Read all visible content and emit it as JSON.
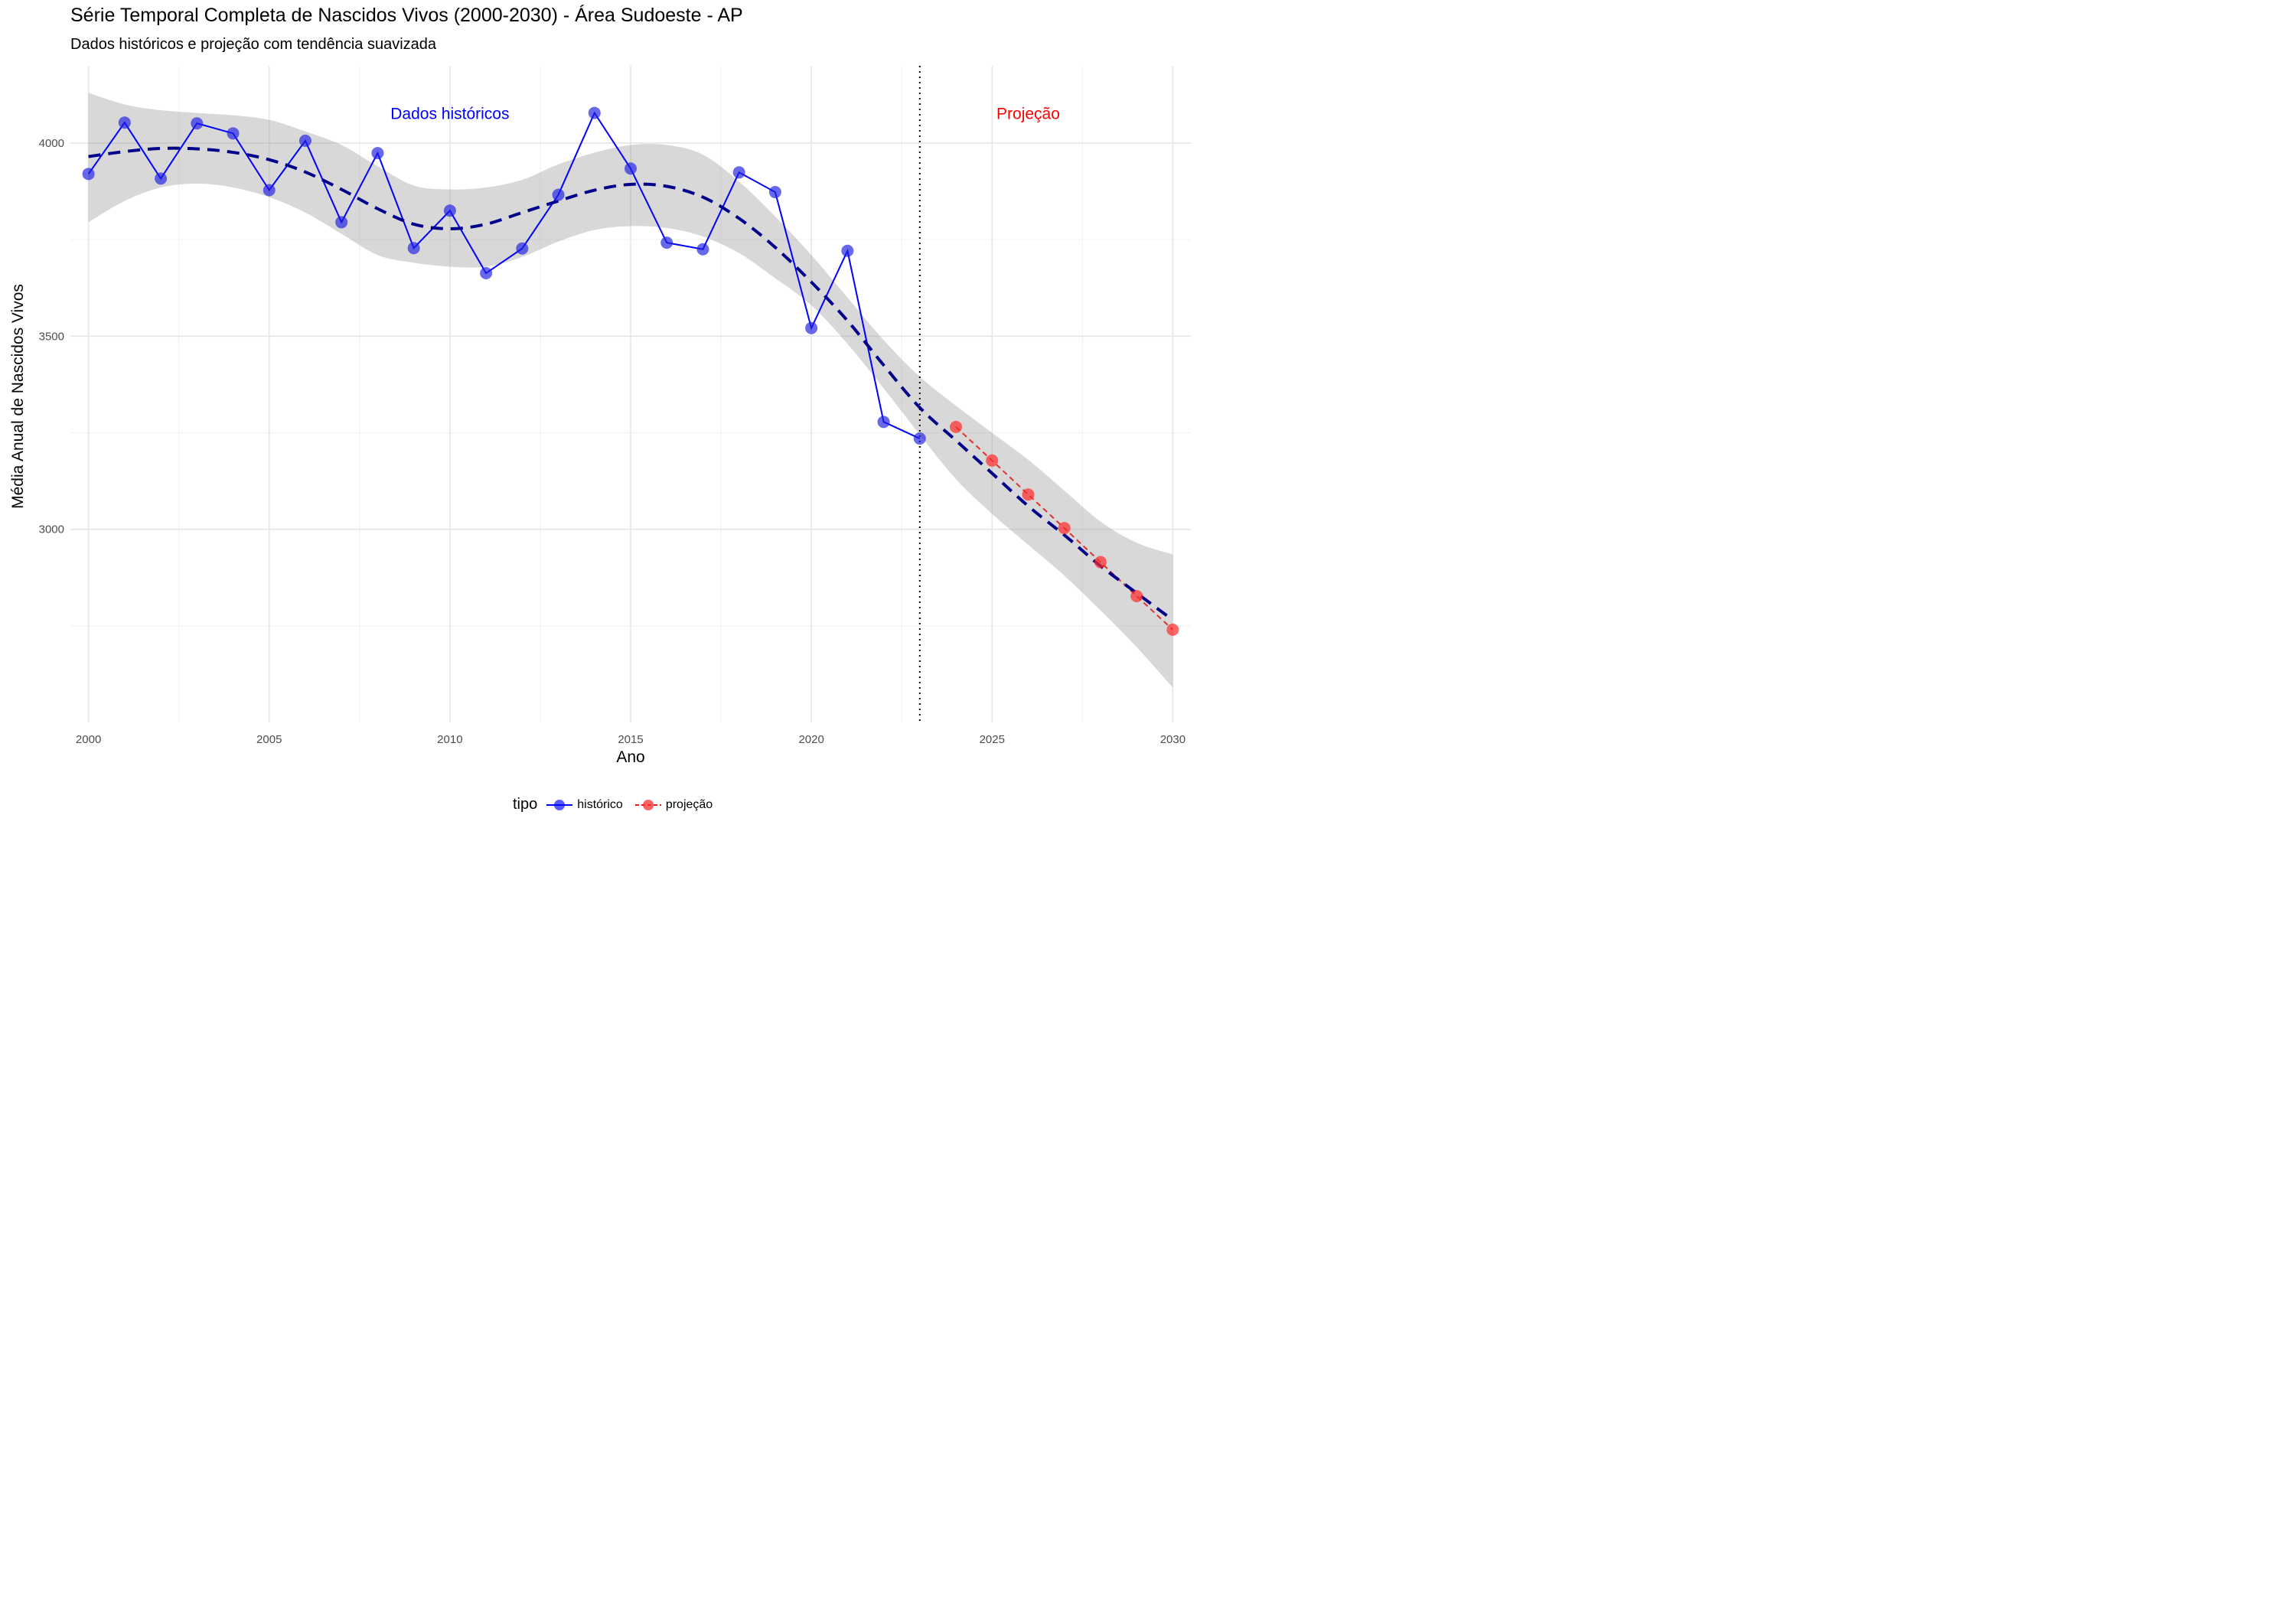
{
  "chart_data": {
    "type": "line",
    "title": "Série Temporal Completa de Nascidos Vivos (2000-2030) -  Área Sudoeste - AP",
    "subtitle": "Dados históricos e projeção com tendência suavizada",
    "xlabel": "Ano",
    "ylabel": "Média Anual de Nascidos Vivos",
    "xlim": [
      1999.5,
      2030.5
    ],
    "ylim": [
      2500,
      4200
    ],
    "x_ticks": [
      2000,
      2005,
      2010,
      2015,
      2020,
      2025,
      2030
    ],
    "y_ticks": [
      3000,
      3500,
      4000
    ],
    "grid": true,
    "legend": {
      "title": "tipo",
      "position": "bottom",
      "entries": [
        "histórico",
        "projeção"
      ]
    },
    "series": [
      {
        "name": "histórico",
        "color": "#0000ff",
        "x": [
          2000,
          2001,
          2002,
          2003,
          2004,
          2005,
          2006,
          2007,
          2008,
          2009,
          2010,
          2011,
          2012,
          2013,
          2014,
          2015,
          2016,
          2017,
          2018,
          2019,
          2020,
          2021,
          2022,
          2023
        ],
        "values": [
          3920,
          4053,
          3908,
          4051,
          4025,
          3878,
          4006,
          3795,
          3974,
          3728,
          3825,
          3663,
          3727,
          3866,
          4078,
          3934,
          3742,
          3725,
          3924,
          3873,
          3521,
          3721,
          3278,
          3235
        ]
      },
      {
        "name": "projeção",
        "color": "#ff0000",
        "x": [
          2024,
          2025,
          2026,
          2027,
          2028,
          2029,
          2030
        ],
        "values": [
          3265,
          3178,
          3090,
          3003,
          2915,
          2827,
          2740
        ]
      }
    ],
    "trend": {
      "color": "#00008b",
      "style": "dashed",
      "x": [
        2000,
        2001,
        2002,
        2003,
        2004,
        2005,
        2006,
        2007,
        2008,
        2009,
        2010,
        2011,
        2012,
        2013,
        2014,
        2015,
        2016,
        2017,
        2018,
        2019,
        2020,
        2021,
        2022,
        2023,
        2024,
        2025,
        2026,
        2027,
        2028,
        2029,
        2030
      ],
      "values": [
        3965,
        3978,
        3986,
        3985,
        3976,
        3957,
        3925,
        3880,
        3830,
        3790,
        3778,
        3790,
        3820,
        3850,
        3878,
        3893,
        3888,
        3860,
        3805,
        3730,
        3640,
        3540,
        3425,
        3315,
        3230,
        3145,
        3060,
        2985,
        2905,
        2835,
        2765
      ],
      "band_lower": [
        3795,
        3850,
        3885,
        3895,
        3885,
        3860,
        3820,
        3765,
        3710,
        3690,
        3680,
        3680,
        3705,
        3745,
        3775,
        3785,
        3780,
        3758,
        3715,
        3650,
        3580,
        3480,
        3365,
        3245,
        3130,
        3040,
        2960,
        2880,
        2790,
        2695,
        2590
      ],
      "band_upper": [
        4130,
        4100,
        4085,
        4078,
        4072,
        4060,
        4030,
        3995,
        3940,
        3890,
        3880,
        3885,
        3905,
        3945,
        3975,
        3995,
        3995,
        3970,
        3900,
        3810,
        3710,
        3600,
        3490,
        3395,
        3320,
        3250,
        3180,
        3100,
        3020,
        2965,
        2935
      ]
    },
    "reference_line": {
      "x": 2023,
      "style": "dotted",
      "color": "#000000"
    },
    "annotations": [
      {
        "text": "Dados históricos",
        "x": 2010,
        "y": 4078,
        "color": "#0000ff"
      },
      {
        "text": "Projeção",
        "x": 2026,
        "y": 4078,
        "color": "#ff0000"
      }
    ]
  }
}
